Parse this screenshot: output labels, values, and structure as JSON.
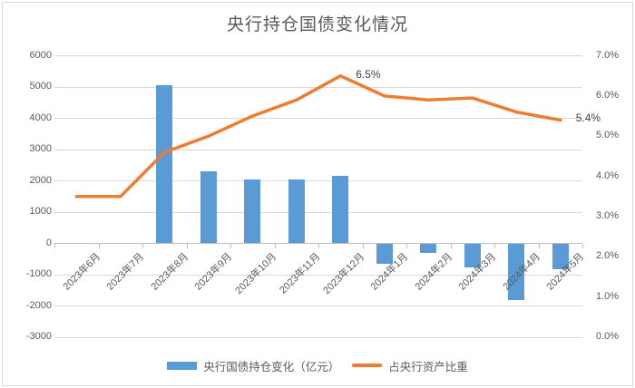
{
  "title": "央行持仓国债变化情况",
  "colors": {
    "bar": "#5b9bd5",
    "line": "#ed7d31",
    "gridline": "#d9d9d9",
    "zero_axis": "#bfbfbf",
    "axis_text": "#595959",
    "data_label_text": "#404040"
  },
  "chart_data": {
    "type": "combo-bar-line",
    "title": "央行持仓国债变化情况",
    "categories": [
      "2023年6月",
      "2023年7月",
      "2023年8月",
      "2023年9月",
      "2023年10月",
      "2023年11月",
      "2023年12月",
      "2024年1月",
      "2024年2月",
      "2024年3月",
      "2024年4月",
      "2024年5月"
    ],
    "series": [
      {
        "name": "央行国债持仓变化（亿元）",
        "type": "bar",
        "axis": "left",
        "values": [
          0,
          0,
          5070,
          2300,
          2030,
          2030,
          2150,
          -650,
          -300,
          -760,
          -1800,
          -840
        ]
      },
      {
        "name": "占央行资产比重",
        "type": "line",
        "axis": "right",
        "values": [
          3.5,
          3.5,
          4.6,
          5.0,
          5.5,
          5.9,
          6.5,
          6.0,
          5.9,
          5.95,
          5.6,
          5.4
        ]
      }
    ],
    "left_axis": {
      "min": -3000,
      "max": 6000,
      "step": 1000,
      "tick_labels": [
        "6000",
        "5000",
        "4000",
        "3000",
        "2000",
        "1000",
        "0",
        "-1000",
        "-2000",
        "-3000"
      ]
    },
    "right_axis": {
      "min": 0.0,
      "max": 7.0,
      "step": 1.0,
      "tick_labels": [
        "7.0%",
        "6.0%",
        "5.0%",
        "4.0%",
        "3.0%",
        "2.0%",
        "1.0%",
        "0.0%"
      ]
    },
    "data_labels": [
      {
        "series": 1,
        "index": 6,
        "text": "6.5%"
      },
      {
        "series": 1,
        "index": 11,
        "text": "5.4%"
      }
    ],
    "grid": true,
    "legend_position": "bottom"
  }
}
